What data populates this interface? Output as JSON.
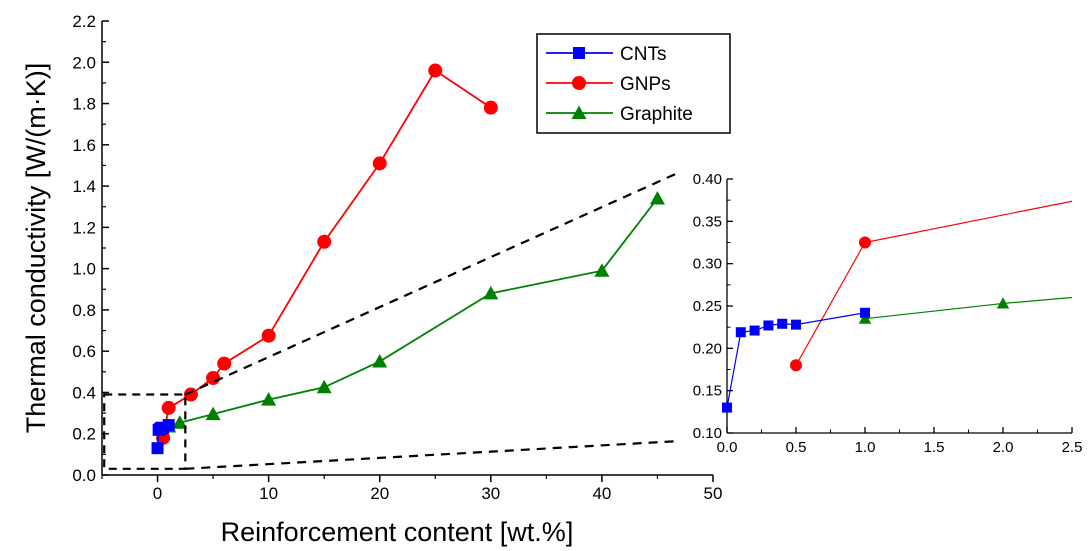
{
  "chart_data": [
    {
      "id": "main",
      "type": "line",
      "xlabel": "Reinforcement content [wt.%]",
      "ylabel": "Thermal conductivity  [W/(m·K)]",
      "xlim": [
        -5,
        50
      ],
      "ylim": [
        0,
        2.2
      ],
      "x_ticks": [
        0,
        10,
        20,
        30,
        40,
        50
      ],
      "y_ticks": [
        0.0,
        0.2,
        0.4,
        0.6,
        0.8,
        1.0,
        1.2,
        1.4,
        1.6,
        1.8,
        2.0,
        2.2
      ],
      "x_tick_labels": [
        "0",
        "10",
        "20",
        "30",
        "40",
        "50"
      ],
      "y_tick_labels": [
        "0.0",
        "0.2",
        "0.4",
        "0.6",
        "0.8",
        "1.0",
        "1.2",
        "1.4",
        "1.6",
        "1.8",
        "2.0",
        "2.2"
      ],
      "grid": false,
      "legend": {
        "placement": "top-right",
        "entries": [
          "CNTs",
          "GNPs",
          "Graphite"
        ]
      },
      "series": [
        {
          "name": "CNTs",
          "color": "#0000ff",
          "marker": "square",
          "x": [
            0,
            0.1,
            0.2,
            0.3,
            0.4,
            0.5,
            1.0
          ],
          "y": [
            0.13,
            0.219,
            0.221,
            0.227,
            0.229,
            0.228,
            0.242
          ]
        },
        {
          "name": "GNPs",
          "color": "#ff0000",
          "marker": "circle",
          "x": [
            0.5,
            1,
            3,
            5,
            6,
            10,
            15,
            20,
            25,
            30
          ],
          "y": [
            0.18,
            0.325,
            0.39,
            0.47,
            0.54,
            0.675,
            1.13,
            1.51,
            1.96,
            1.78
          ]
        },
        {
          "name": "Graphite",
          "color": "#008000",
          "marker": "triangle",
          "x": [
            1,
            2,
            5,
            10,
            15,
            20,
            30,
            40,
            45
          ],
          "y": [
            0.235,
            0.253,
            0.295,
            0.365,
            0.425,
            0.55,
            0.88,
            0.99,
            1.34
          ]
        }
      ],
      "zoom_box": {
        "x": [
          -4.8,
          2.5
        ],
        "y": [
          0.03,
          0.39
        ]
      }
    },
    {
      "id": "inset",
      "type": "line",
      "xlim": [
        0,
        2.5
      ],
      "ylim": [
        0.1,
        0.4
      ],
      "x_ticks": [
        0.0,
        0.5,
        1.0,
        1.5,
        2.0,
        2.5
      ],
      "y_ticks": [
        0.1,
        0.15,
        0.2,
        0.25,
        0.3,
        0.35,
        0.4
      ],
      "x_tick_labels": [
        "0.0",
        "0.5",
        "1.0",
        "1.5",
        "2.0",
        "2.5"
      ],
      "y_tick_labels": [
        "0.10",
        "0.15",
        "0.20",
        "0.25",
        "0.30",
        "0.35",
        "0.40"
      ],
      "grid": false,
      "series": [
        {
          "name": "CNTs",
          "color": "#0000ff",
          "marker": "square",
          "x": [
            0,
            0.1,
            0.2,
            0.3,
            0.4,
            0.5,
            1.0
          ],
          "y": [
            0.13,
            0.219,
            0.221,
            0.227,
            0.229,
            0.228,
            0.242
          ]
        },
        {
          "name": "GNPs",
          "color": "#ff0000",
          "marker": "circle",
          "x": [
            0.5,
            1.0,
            3.0
          ],
          "y": [
            0.18,
            0.325,
            0.39
          ],
          "points_drawn": 2
        },
        {
          "name": "Graphite",
          "color": "#008000",
          "marker": "triangle",
          "x": [
            1.0,
            2.0,
            5.0
          ],
          "y": [
            0.235,
            0.253,
            0.295
          ],
          "points_drawn": 2
        }
      ]
    }
  ]
}
